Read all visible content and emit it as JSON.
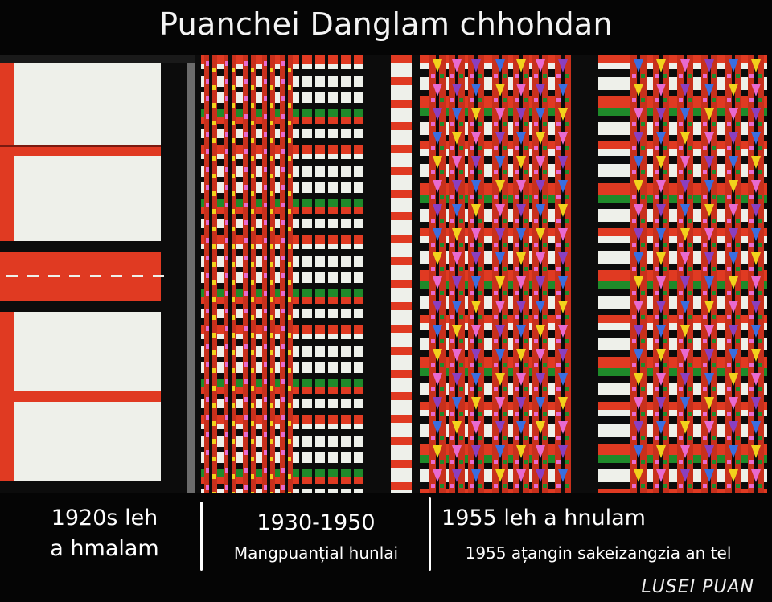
{
  "title": "Puanchei Danglam chhohdan",
  "panels": [
    {
      "main_line1": "1920s leh",
      "main_line2": "a hmalam",
      "sub": ""
    },
    {
      "main_line1": "1930-1950",
      "main_line2": "",
      "sub": "Mangpuanțial hunlai"
    },
    {
      "main_line1": "1955 leh a hnulam",
      "main_line2": "",
      "sub": "1955 ațangin sakeizangzia an tel"
    }
  ],
  "credit": "LUSEI PUAN",
  "colors": {
    "red": "#e03a22",
    "black": "#0c0c0c",
    "white": "#eef0ea",
    "green": "#1f8a2a",
    "yellow": "#f2d21c",
    "pink": "#e86ad0",
    "purple": "#8a3fc0",
    "blue": "#3a6ee0"
  }
}
